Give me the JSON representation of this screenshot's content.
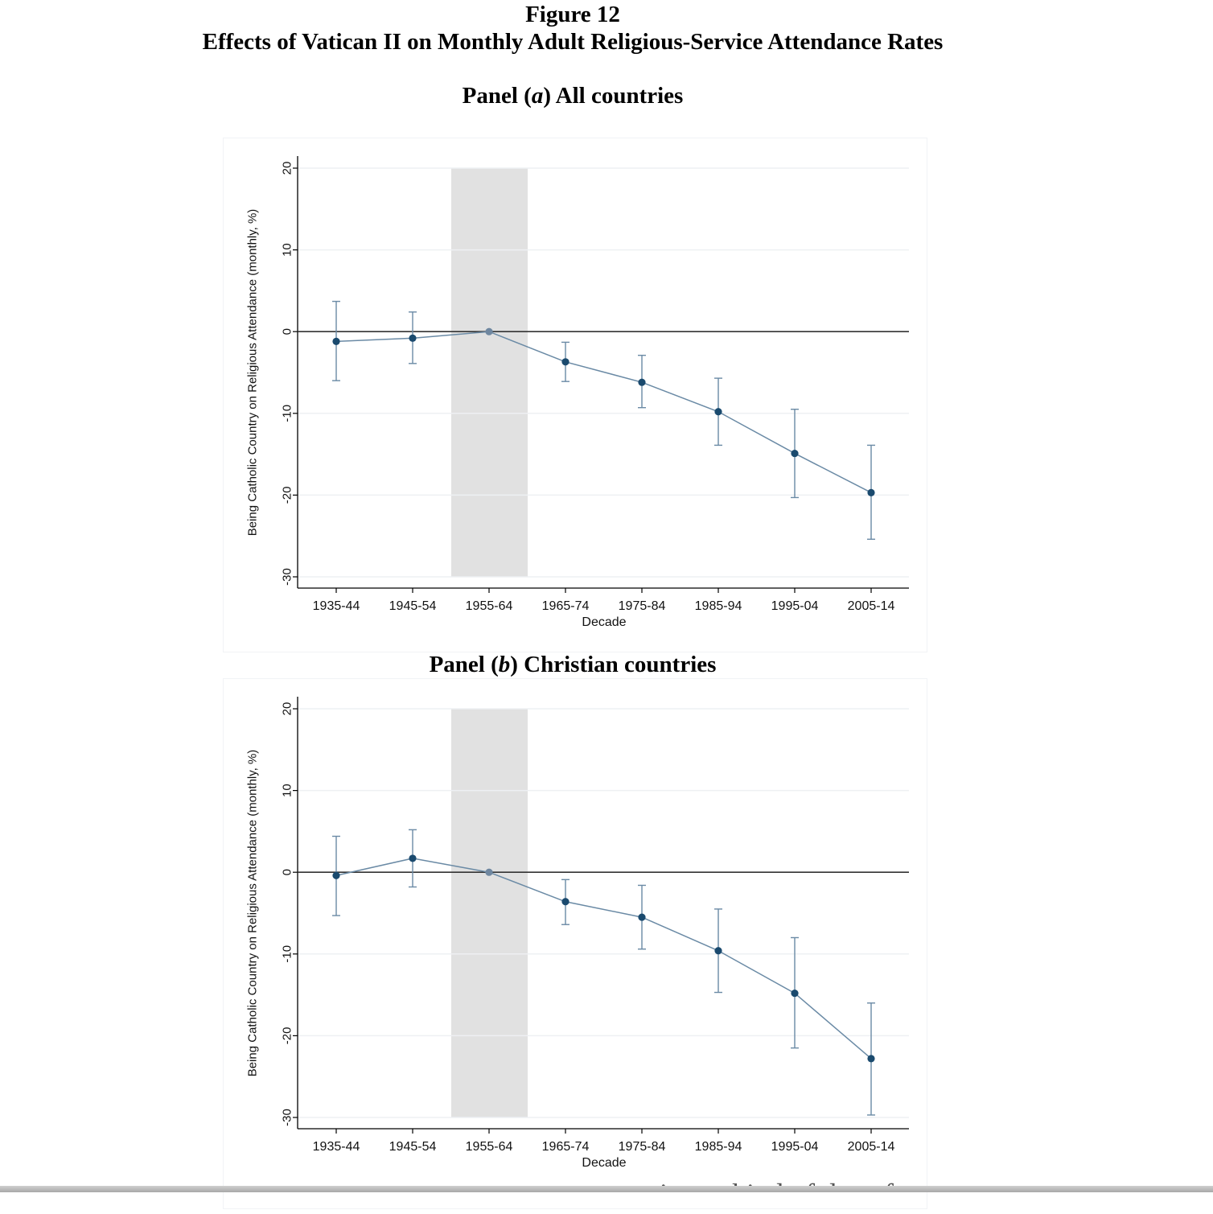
{
  "figure": {
    "label": "Figure 12",
    "title": "Effects of Vatican II on Monthly Adult Religious-Service Attendance Rates"
  },
  "panels": [
    {
      "prefix": "Panel (",
      "italic": "a",
      "suffix": ") All countries"
    },
    {
      "prefix": "Panel (",
      "italic": "b",
      "suffix": ") Christian countries"
    }
  ],
  "footer_text": "women into a kind of deep freeze",
  "colors": {
    "line": "#6a8aa5",
    "marker": "#1a4a6e",
    "reference_marker": "#6f87a0",
    "shaded_region": "#e1e1e1",
    "zero_line": "#333333",
    "grid": "#eef0f3"
  },
  "chart_data": [
    {
      "type": "line",
      "panel": "Panel (a) All countries",
      "xlabel": "Decade",
      "ylabel": "Being Catholic Country on Religious Attendance (monthly, %)",
      "ylim": [
        -30,
        20
      ],
      "yticks": [
        20,
        10,
        0,
        -10,
        -20,
        -30
      ],
      "categories": [
        "1935-44",
        "1945-54",
        "1955-64",
        "1965-74",
        "1975-84",
        "1985-94",
        "1995-04",
        "2005-14"
      ],
      "values": [
        -1.2,
        -0.8,
        0,
        -3.7,
        -6.2,
        -9.8,
        -14.9,
        -19.7
      ],
      "ci_low": [
        -6.0,
        -3.9,
        0,
        -6.1,
        -9.3,
        -13.9,
        -20.3,
        -25.4
      ],
      "ci_high": [
        3.7,
        2.4,
        0,
        -1.3,
        -2.9,
        -5.7,
        -9.5,
        -13.9
      ],
      "reference_category": "1955-64",
      "shaded_region": [
        "1945-54",
        "1955-64"
      ],
      "zero_line": true,
      "grid": true
    },
    {
      "type": "line",
      "panel": "Panel (b) Christian countries",
      "xlabel": "Decade",
      "ylabel": "Being Catholic Country on Religious Attendance (monthly, %)",
      "ylim": [
        -30,
        20
      ],
      "yticks": [
        20,
        10,
        0,
        -10,
        -20,
        -30
      ],
      "categories": [
        "1935-44",
        "1945-54",
        "1955-64",
        "1965-74",
        "1975-84",
        "1985-94",
        "1995-04",
        "2005-14"
      ],
      "values": [
        -0.4,
        1.7,
        0,
        -3.6,
        -5.5,
        -9.6,
        -14.8,
        -22.8
      ],
      "ci_low": [
        -5.3,
        -1.8,
        0,
        -6.4,
        -9.4,
        -14.7,
        -21.5,
        -29.7
      ],
      "ci_high": [
        4.4,
        5.2,
        0,
        -0.9,
        -1.6,
        -4.5,
        -8.0,
        -16.0
      ],
      "reference_category": "1955-64",
      "shaded_region": [
        "1945-54",
        "1955-64"
      ],
      "zero_line": true,
      "grid": true
    }
  ]
}
